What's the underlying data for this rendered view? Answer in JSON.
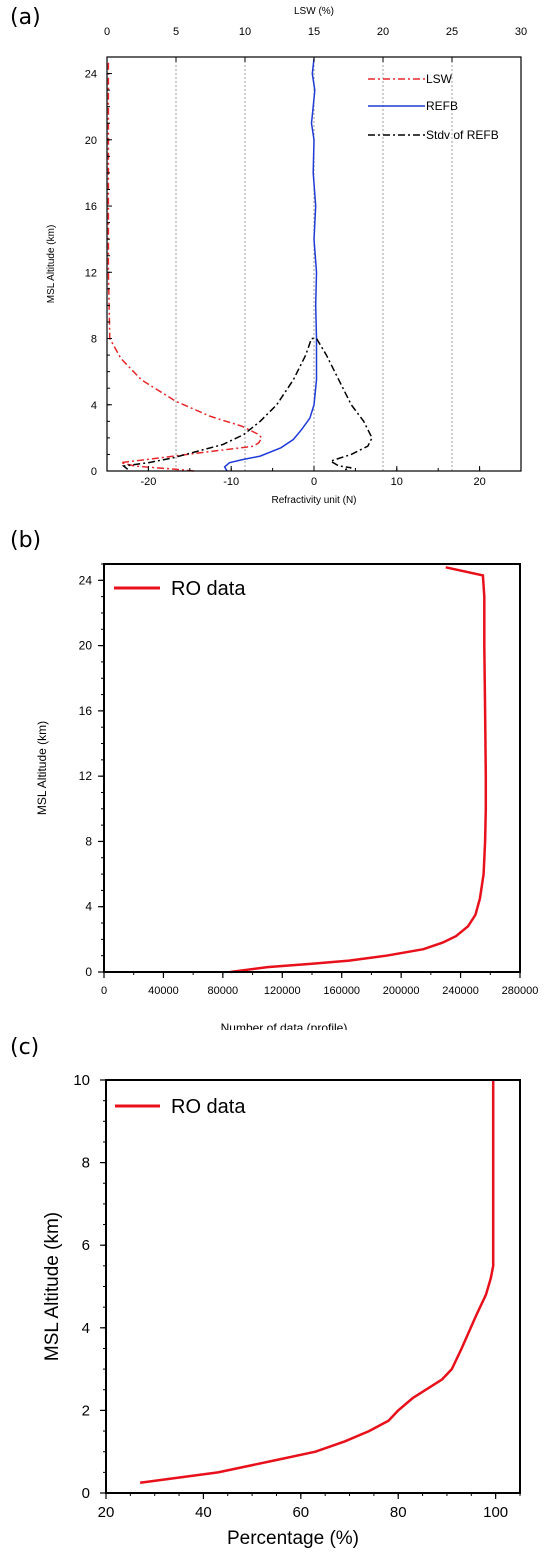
{
  "chart_data": [
    {
      "panel": "(a)",
      "type": "line",
      "xlabel": "Refractivity unit (N)",
      "x2label": "LSW (%)",
      "ylabel": "MSL Altitude (km)",
      "xlim": [
        -25,
        25
      ],
      "x2lim": [
        0,
        30
      ],
      "ylim": [
        0,
        25
      ],
      "xticks": [
        "-20",
        "-10",
        "0",
        "10",
        "20"
      ],
      "x2ticks": [
        "0",
        "5",
        "10",
        "15",
        "20",
        "25",
        "30"
      ],
      "yticks": [
        "0",
        "4",
        "8",
        "12",
        "16",
        "20",
        "24"
      ],
      "grid": "vertical dotted at LSW ticks",
      "legend": "top-right",
      "series": [
        {
          "name": "LSW",
          "color": "#e8262a",
          "style": "dash-dot",
          "axis": "x2",
          "points": [
            [
              6.3,
              0.0
            ],
            [
              5.0,
              0.1
            ],
            [
              3.5,
              0.2
            ],
            [
              2.0,
              0.3
            ],
            [
              1.0,
              0.5
            ],
            [
              10.6,
              1.5
            ],
            [
              11.0,
              1.7
            ],
            [
              11.2,
              2.0
            ],
            [
              11.0,
              2.2
            ],
            [
              9.8,
              2.7
            ],
            [
              7.5,
              3.3
            ],
            [
              5.0,
              4.2
            ],
            [
              2.5,
              5.5
            ],
            [
              1.0,
              6.8
            ],
            [
              0.2,
              8.0
            ],
            [
              0.1,
              12.0
            ],
            [
              0.1,
              20.0
            ],
            [
              0.1,
              24.8
            ]
          ]
        },
        {
          "name": "REFB",
          "color": "#1f3bd6",
          "style": "solid",
          "axis": "x",
          "points": [
            [
              -10.5,
              0.0
            ],
            [
              -10.8,
              0.25
            ],
            [
              -10.2,
              0.5
            ],
            [
              -8.5,
              0.7
            ],
            [
              -6.5,
              0.9
            ],
            [
              -4.0,
              1.4
            ],
            [
              -2.5,
              1.9
            ],
            [
              -1.5,
              2.5
            ],
            [
              -0.5,
              3.2
            ],
            [
              0.0,
              4.0
            ],
            [
              0.3,
              5.5
            ],
            [
              0.3,
              7.0
            ],
            [
              0.3,
              8.0
            ],
            [
              0.2,
              10.0
            ],
            [
              0.3,
              12.0
            ],
            [
              0.0,
              14.0
            ],
            [
              0.2,
              16.0
            ],
            [
              -0.1,
              18.0
            ],
            [
              0.0,
              20.0
            ],
            [
              -0.3,
              21.0
            ],
            [
              -0.1,
              22.0
            ],
            [
              0.1,
              23.0
            ],
            [
              -0.2,
              24.0
            ],
            [
              0.0,
              24.9
            ]
          ]
        },
        {
          "name": "Stdv of REFB",
          "color": "#000000",
          "style": "dash-dot",
          "axis": "x",
          "points": [
            [
              -22.5,
              0.1
            ],
            [
              -23.0,
              0.3
            ],
            [
              -20.0,
              0.5
            ],
            [
              -17.0,
              0.8
            ],
            [
              -14.0,
              1.2
            ],
            [
              -11.0,
              1.6
            ],
            [
              -8.5,
              2.2
            ],
            [
              -6.5,
              3.0
            ],
            [
              -4.5,
              4.0
            ],
            [
              -2.5,
              5.5
            ],
            [
              -1.0,
              7.0
            ],
            [
              -0.3,
              8.0
            ],
            [
              0.3,
              8.0
            ],
            [
              1.5,
              7.0
            ],
            [
              3.0,
              5.5
            ],
            [
              4.5,
              4.0
            ],
            [
              6.0,
              3.0
            ],
            [
              7.0,
              2.0
            ],
            [
              6.5,
              1.5
            ],
            [
              4.5,
              1.0
            ],
            [
              2.0,
              0.6
            ],
            [
              3.0,
              0.3
            ],
            [
              4.5,
              0.2
            ],
            [
              3.5,
              0.05
            ]
          ]
        }
      ]
    },
    {
      "panel": "(b)",
      "type": "line",
      "xlabel": "Number of data (profile)",
      "ylabel": "MSL Altitude (km)",
      "xlim": [
        0,
        280000
      ],
      "ylim": [
        0,
        25
      ],
      "xticks": [
        "0",
        "40000",
        "80000",
        "120000",
        "160000",
        "200000",
        "240000",
        "280000"
      ],
      "yticks": [
        "0",
        "4",
        "8",
        "12",
        "16",
        "20",
        "24"
      ],
      "legend": "top-left",
      "series": [
        {
          "name": "RO data",
          "color": "#e8101a",
          "points": [
            [
              85000,
              0.0
            ],
            [
              110000,
              0.3
            ],
            [
              140000,
              0.5
            ],
            [
              165000,
              0.7
            ],
            [
              190000,
              1.0
            ],
            [
              215000,
              1.4
            ],
            [
              228000,
              1.8
            ],
            [
              237000,
              2.2
            ],
            [
              245000,
              2.8
            ],
            [
              250000,
              3.5
            ],
            [
              253000,
              4.5
            ],
            [
              255500,
              6.0
            ],
            [
              256500,
              8.0
            ],
            [
              257000,
              10.0
            ],
            [
              257000,
              12.0
            ],
            [
              256500,
              16.0
            ],
            [
              256000,
              20.0
            ],
            [
              256000,
              23.0
            ],
            [
              255000,
              24.3
            ],
            [
              230000,
              24.8
            ]
          ]
        }
      ]
    },
    {
      "panel": "(c)",
      "type": "line",
      "xlabel": "Percentage (%)",
      "ylabel": "MSL Altitude (km)",
      "xlim": [
        20,
        105
      ],
      "ylim": [
        0,
        10
      ],
      "xticks": [
        "20",
        "40",
        "60",
        "80",
        "100"
      ],
      "yticks": [
        "0",
        "2",
        "4",
        "6",
        "8",
        "10"
      ],
      "legend": "top-left",
      "series": [
        {
          "name": "RO data",
          "color": "#e8101a",
          "points": [
            [
              27,
              0.25
            ],
            [
              43,
              0.5
            ],
            [
              55,
              0.8
            ],
            [
              63,
              1.0
            ],
            [
              69,
              1.25
            ],
            [
              74,
              1.5
            ],
            [
              78,
              1.75
            ],
            [
              80,
              2.0
            ],
            [
              83,
              2.3
            ],
            [
              89,
              2.75
            ],
            [
              91,
              3.0
            ],
            [
              93,
              3.5
            ],
            [
              96,
              4.3
            ],
            [
              98,
              4.8
            ],
            [
              99,
              5.2
            ],
            [
              99.5,
              5.5
            ],
            [
              99.5,
              7.0
            ],
            [
              99.5,
              10.0
            ]
          ]
        }
      ]
    }
  ]
}
